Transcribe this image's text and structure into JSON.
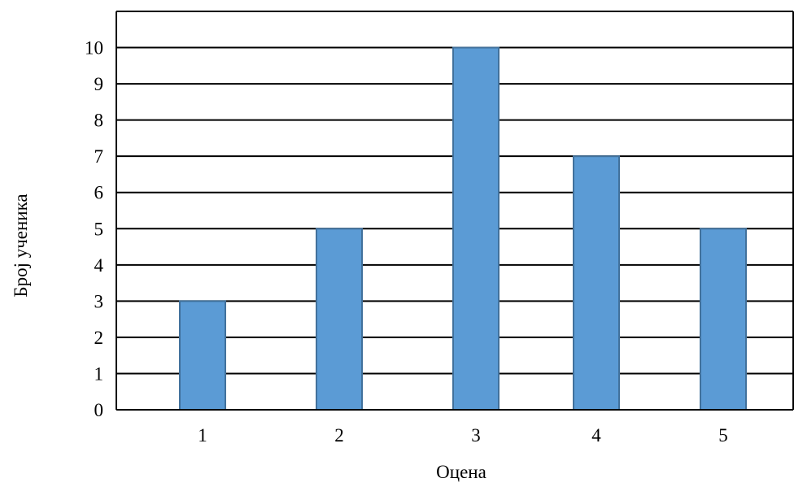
{
  "chart_data": {
    "type": "bar",
    "categories": [
      "1",
      "2",
      "3",
      "4",
      "5"
    ],
    "values": [
      3,
      5,
      10,
      7,
      5
    ],
    "xlabel": "Оцена",
    "ylabel": "Број ученика",
    "ylim": [
      0,
      11
    ],
    "yticks": [
      0,
      1,
      2,
      3,
      4,
      5,
      6,
      7,
      8,
      9,
      10
    ],
    "grid": true,
    "colors": {
      "bar_fill": "#5b9bd5",
      "bar_edge": "#41719c",
      "grid": "#000000"
    }
  }
}
